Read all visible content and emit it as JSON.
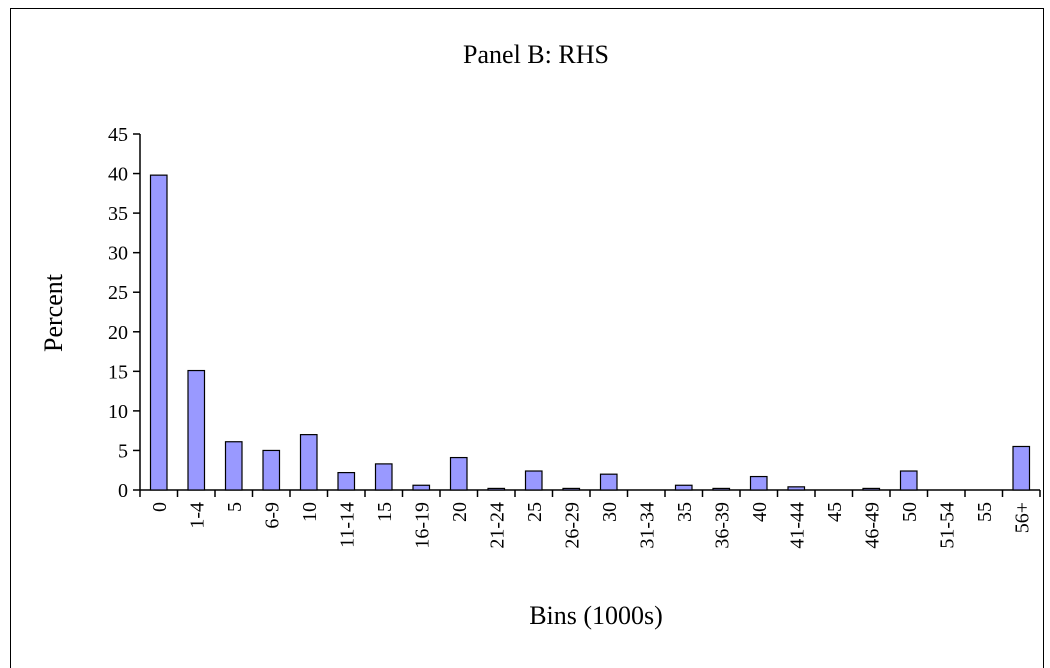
{
  "chart_data": {
    "type": "bar",
    "title": "Panel B: RHS",
    "xlabel": "Bins (1000s)",
    "ylabel": "Percent",
    "ylim": [
      0,
      45
    ],
    "yticks": [
      0,
      5,
      10,
      15,
      20,
      25,
      30,
      35,
      40,
      45
    ],
    "categories": [
      "0",
      "1-4",
      "5",
      "6-9",
      "10",
      "11-14",
      "15",
      "16-19",
      "20",
      "21-24",
      "25",
      "26-29",
      "30",
      "31-34",
      "35",
      "36-39",
      "40",
      "41-44",
      "45",
      "46-49",
      "50",
      "51-54",
      "55",
      "56+"
    ],
    "values": [
      39.8,
      15.1,
      6.1,
      5.0,
      7.0,
      2.2,
      3.3,
      0.6,
      4.1,
      0.2,
      2.4,
      0.2,
      2.0,
      0,
      0.6,
      0.2,
      1.7,
      0.4,
      0,
      0.2,
      2.4,
      0,
      0,
      5.5
    ],
    "bar_color": "#9999ff",
    "grid": false,
    "legend": "none"
  }
}
